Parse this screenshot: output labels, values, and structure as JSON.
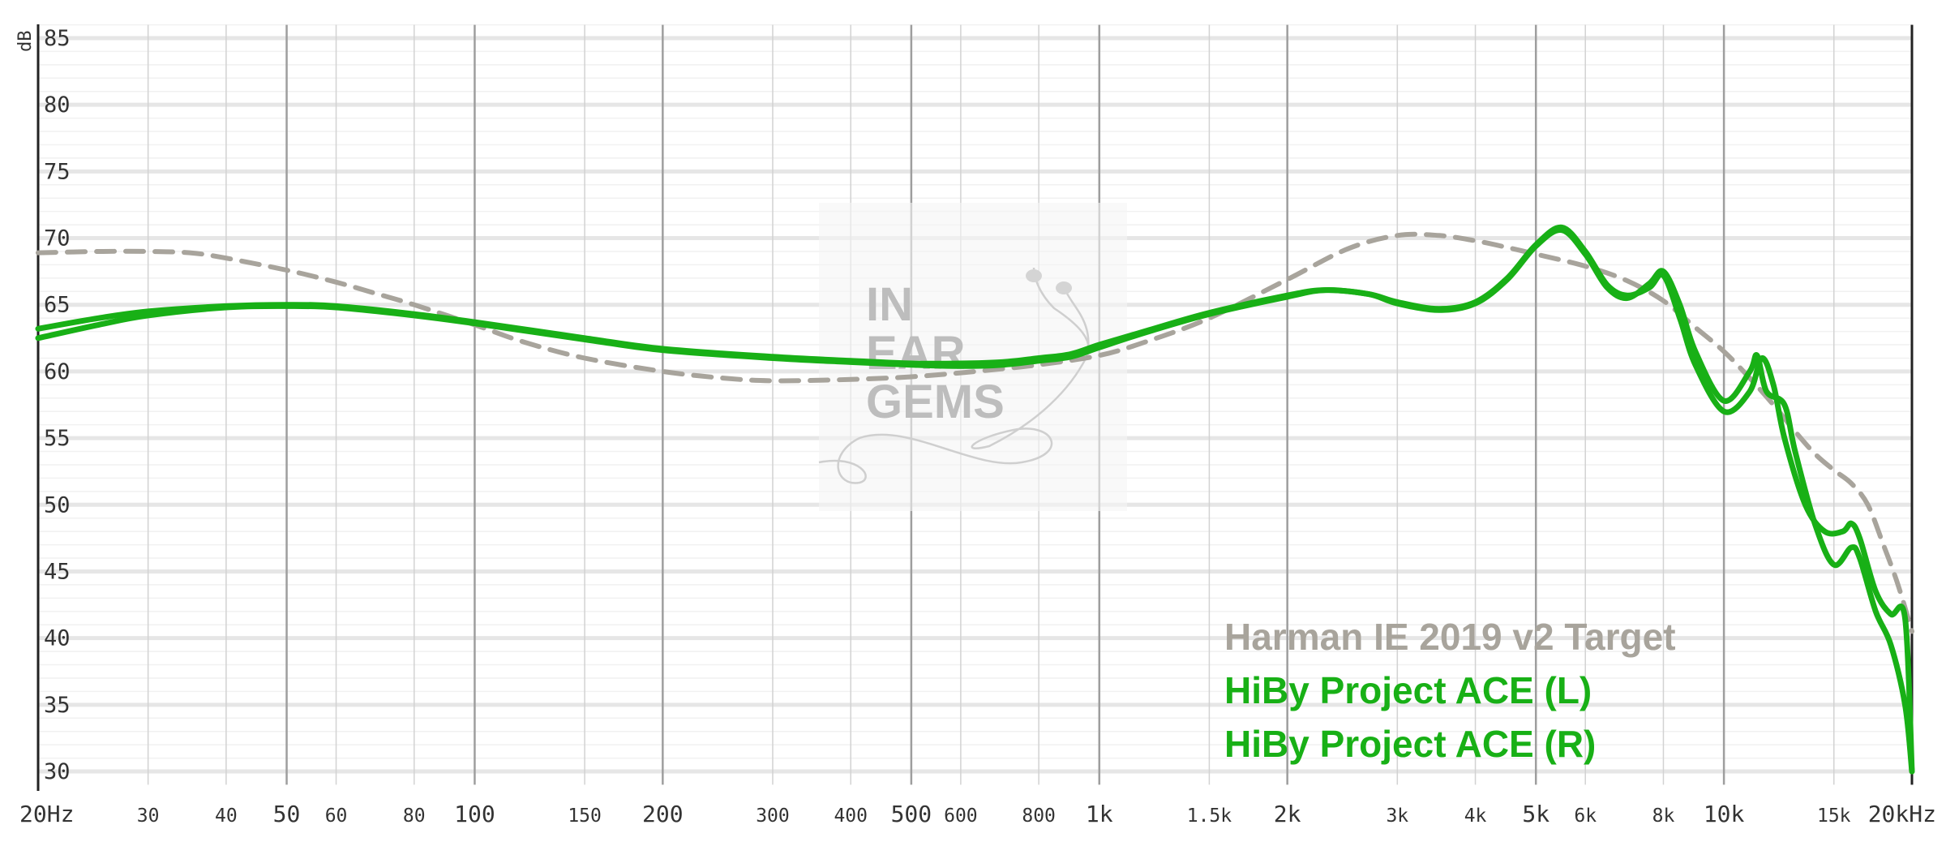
{
  "chart_data": {
    "type": "line",
    "xscale": "log",
    "xlim": [
      20,
      20000
    ],
    "ylim": [
      29,
      86
    ],
    "ylabel": "dB",
    "grid": true,
    "legend_position": "bottom-right",
    "y_ticks": [
      {
        "value": 85,
        "label": "85"
      },
      {
        "value": 80,
        "label": "80"
      },
      {
        "value": 75,
        "label": "75"
      },
      {
        "value": 70,
        "label": "70"
      },
      {
        "value": 65,
        "label": "65"
      },
      {
        "value": 60,
        "label": "60"
      },
      {
        "value": 55,
        "label": "55"
      },
      {
        "value": 50,
        "label": "50"
      },
      {
        "value": 45,
        "label": "45"
      },
      {
        "value": 40,
        "label": "40"
      },
      {
        "value": 35,
        "label": "35"
      },
      {
        "value": 30,
        "label": "30"
      }
    ],
    "x_ticks": [
      {
        "value": 20,
        "label": "20Hz",
        "major": true
      },
      {
        "value": 30,
        "label": "30",
        "major": false
      },
      {
        "value": 40,
        "label": "40",
        "major": false
      },
      {
        "value": 50,
        "label": "50",
        "major": true
      },
      {
        "value": 60,
        "label": "60",
        "major": false
      },
      {
        "value": 80,
        "label": "80",
        "major": false
      },
      {
        "value": 100,
        "label": "100",
        "major": true
      },
      {
        "value": 150,
        "label": "150",
        "major": false
      },
      {
        "value": 200,
        "label": "200",
        "major": true
      },
      {
        "value": 300,
        "label": "300",
        "major": false
      },
      {
        "value": 400,
        "label": "400",
        "major": false
      },
      {
        "value": 500,
        "label": "500",
        "major": true
      },
      {
        "value": 600,
        "label": "600",
        "major": false
      },
      {
        "value": 800,
        "label": "800",
        "major": false
      },
      {
        "value": 1000,
        "label": "1k",
        "major": true
      },
      {
        "value": 1500,
        "label": "1.5k",
        "major": false
      },
      {
        "value": 2000,
        "label": "2k",
        "major": true
      },
      {
        "value": 3000,
        "label": "3k",
        "major": false
      },
      {
        "value": 4000,
        "label": "4k",
        "major": false
      },
      {
        "value": 5000,
        "label": "5k",
        "major": true
      },
      {
        "value": 6000,
        "label": "6k",
        "major": false
      },
      {
        "value": 8000,
        "label": "8k",
        "major": false
      },
      {
        "value": 10000,
        "label": "10k",
        "major": true
      },
      {
        "value": 15000,
        "label": "15k",
        "major": false
      },
      {
        "value": 20000,
        "label": "20kHz",
        "major": true
      }
    ],
    "series": [
      {
        "name": "Harman IE 2019 v2 Target",
        "color": "#a8a49c",
        "dashed": true,
        "points": [
          [
            20,
            68.9
          ],
          [
            25,
            69.0
          ],
          [
            30,
            69.0
          ],
          [
            35,
            68.9
          ],
          [
            40,
            68.5
          ],
          [
            50,
            67.6
          ],
          [
            60,
            66.7
          ],
          [
            70,
            65.8
          ],
          [
            80,
            65.0
          ],
          [
            100,
            63.5
          ],
          [
            120,
            62.2
          ],
          [
            150,
            61.0
          ],
          [
            200,
            60.0
          ],
          [
            250,
            59.5
          ],
          [
            300,
            59.3
          ],
          [
            400,
            59.4
          ],
          [
            500,
            59.6
          ],
          [
            600,
            59.9
          ],
          [
            700,
            60.2
          ],
          [
            800,
            60.5
          ],
          [
            1000,
            61.2
          ],
          [
            1200,
            62.3
          ],
          [
            1500,
            64.0
          ],
          [
            2000,
            66.9
          ],
          [
            2500,
            69.2
          ],
          [
            3000,
            70.2
          ],
          [
            3500,
            70.2
          ],
          [
            4000,
            69.8
          ],
          [
            4500,
            69.3
          ],
          [
            5000,
            68.8
          ],
          [
            6000,
            67.9
          ],
          [
            7000,
            66.8
          ],
          [
            8000,
            65.3
          ],
          [
            9000,
            63.3
          ],
          [
            10000,
            61.5
          ],
          [
            11000,
            59.5
          ],
          [
            12000,
            57.5
          ],
          [
            13000,
            55.5
          ],
          [
            14000,
            53.8
          ],
          [
            15000,
            52.6
          ],
          [
            16000,
            51.6
          ],
          [
            17000,
            50.0
          ],
          [
            18000,
            47.0
          ],
          [
            19000,
            44.0
          ],
          [
            20000,
            40.5
          ]
        ]
      },
      {
        "name": "HiBy Project ACE (L)",
        "color": "#18b016",
        "dashed": false,
        "points": [
          [
            20,
            62.5
          ],
          [
            25,
            63.5
          ],
          [
            30,
            64.2
          ],
          [
            40,
            64.8
          ],
          [
            50,
            64.9
          ],
          [
            60,
            64.8
          ],
          [
            80,
            64.2
          ],
          [
            100,
            63.6
          ],
          [
            150,
            62.4
          ],
          [
            200,
            61.6
          ],
          [
            300,
            61.0
          ],
          [
            400,
            60.7
          ],
          [
            500,
            60.5
          ],
          [
            600,
            60.4
          ],
          [
            700,
            60.5
          ],
          [
            800,
            60.8
          ],
          [
            900,
            61.1
          ],
          [
            1000,
            61.8
          ],
          [
            1200,
            63.0
          ],
          [
            1500,
            64.3
          ],
          [
            2000,
            65.6
          ],
          [
            2300,
            66.1
          ],
          [
            2700,
            65.8
          ],
          [
            3000,
            65.2
          ],
          [
            3500,
            64.7
          ],
          [
            4000,
            65.2
          ],
          [
            4500,
            67.0
          ],
          [
            5000,
            69.5
          ],
          [
            5500,
            70.8
          ],
          [
            6000,
            69.0
          ],
          [
            6500,
            66.5
          ],
          [
            7000,
            65.7
          ],
          [
            7600,
            66.3
          ],
          [
            8000,
            67.2
          ],
          [
            8500,
            64.0
          ],
          [
            9000,
            60.5
          ],
          [
            10000,
            57.0
          ],
          [
            11000,
            58.5
          ],
          [
            11500,
            61.0
          ],
          [
            12000,
            59.0
          ],
          [
            12500,
            55.0
          ],
          [
            13500,
            50.0
          ],
          [
            14500,
            48.0
          ],
          [
            15500,
            48.0
          ],
          [
            16000,
            48.6
          ],
          [
            16500,
            47.5
          ],
          [
            17500,
            43.5
          ],
          [
            18500,
            41.8
          ],
          [
            19500,
            41.5
          ],
          [
            20000,
            30.0
          ]
        ]
      },
      {
        "name": "HiBy Project ACE (R)",
        "color": "#18b016",
        "dashed": false,
        "points": [
          [
            20,
            63.2
          ],
          [
            25,
            64.0
          ],
          [
            30,
            64.5
          ],
          [
            40,
            64.9
          ],
          [
            50,
            65.0
          ],
          [
            60,
            64.9
          ],
          [
            80,
            64.3
          ],
          [
            100,
            63.7
          ],
          [
            150,
            62.5
          ],
          [
            200,
            61.7
          ],
          [
            300,
            61.1
          ],
          [
            400,
            60.8
          ],
          [
            500,
            60.6
          ],
          [
            600,
            60.6
          ],
          [
            700,
            60.7
          ],
          [
            800,
            61.0
          ],
          [
            900,
            61.3
          ],
          [
            1000,
            62.0
          ],
          [
            1200,
            63.1
          ],
          [
            1500,
            64.4
          ],
          [
            2000,
            65.7
          ],
          [
            2300,
            66.1
          ],
          [
            2700,
            65.8
          ],
          [
            3000,
            65.1
          ],
          [
            3500,
            64.6
          ],
          [
            4000,
            65.1
          ],
          [
            4500,
            66.9
          ],
          [
            5000,
            69.4
          ],
          [
            5500,
            70.6
          ],
          [
            6000,
            68.8
          ],
          [
            6500,
            66.3
          ],
          [
            7000,
            65.5
          ],
          [
            7600,
            66.6
          ],
          [
            8000,
            67.5
          ],
          [
            8500,
            65.0
          ],
          [
            9000,
            61.5
          ],
          [
            10000,
            57.8
          ],
          [
            11000,
            60.0
          ],
          [
            11300,
            61.2
          ],
          [
            11700,
            58.5
          ],
          [
            12500,
            57.5
          ],
          [
            13000,
            54.0
          ],
          [
            14000,
            48.5
          ],
          [
            15000,
            45.5
          ],
          [
            16000,
            46.8
          ],
          [
            16500,
            46.0
          ],
          [
            17500,
            42.0
          ],
          [
            18500,
            39.5
          ],
          [
            19500,
            35.0
          ],
          [
            20000,
            30.0
          ]
        ]
      }
    ],
    "legend": [
      {
        "label": "Harman IE 2019 v2 Target",
        "color": "#a8a49c"
      },
      {
        "label": "HiBy Project ACE (L)",
        "color": "#18b016"
      },
      {
        "label": "HiBy Project ACE (R)",
        "color": "#18b016"
      }
    ],
    "watermark": [
      "IN",
      "EAR",
      "GEMS"
    ]
  }
}
